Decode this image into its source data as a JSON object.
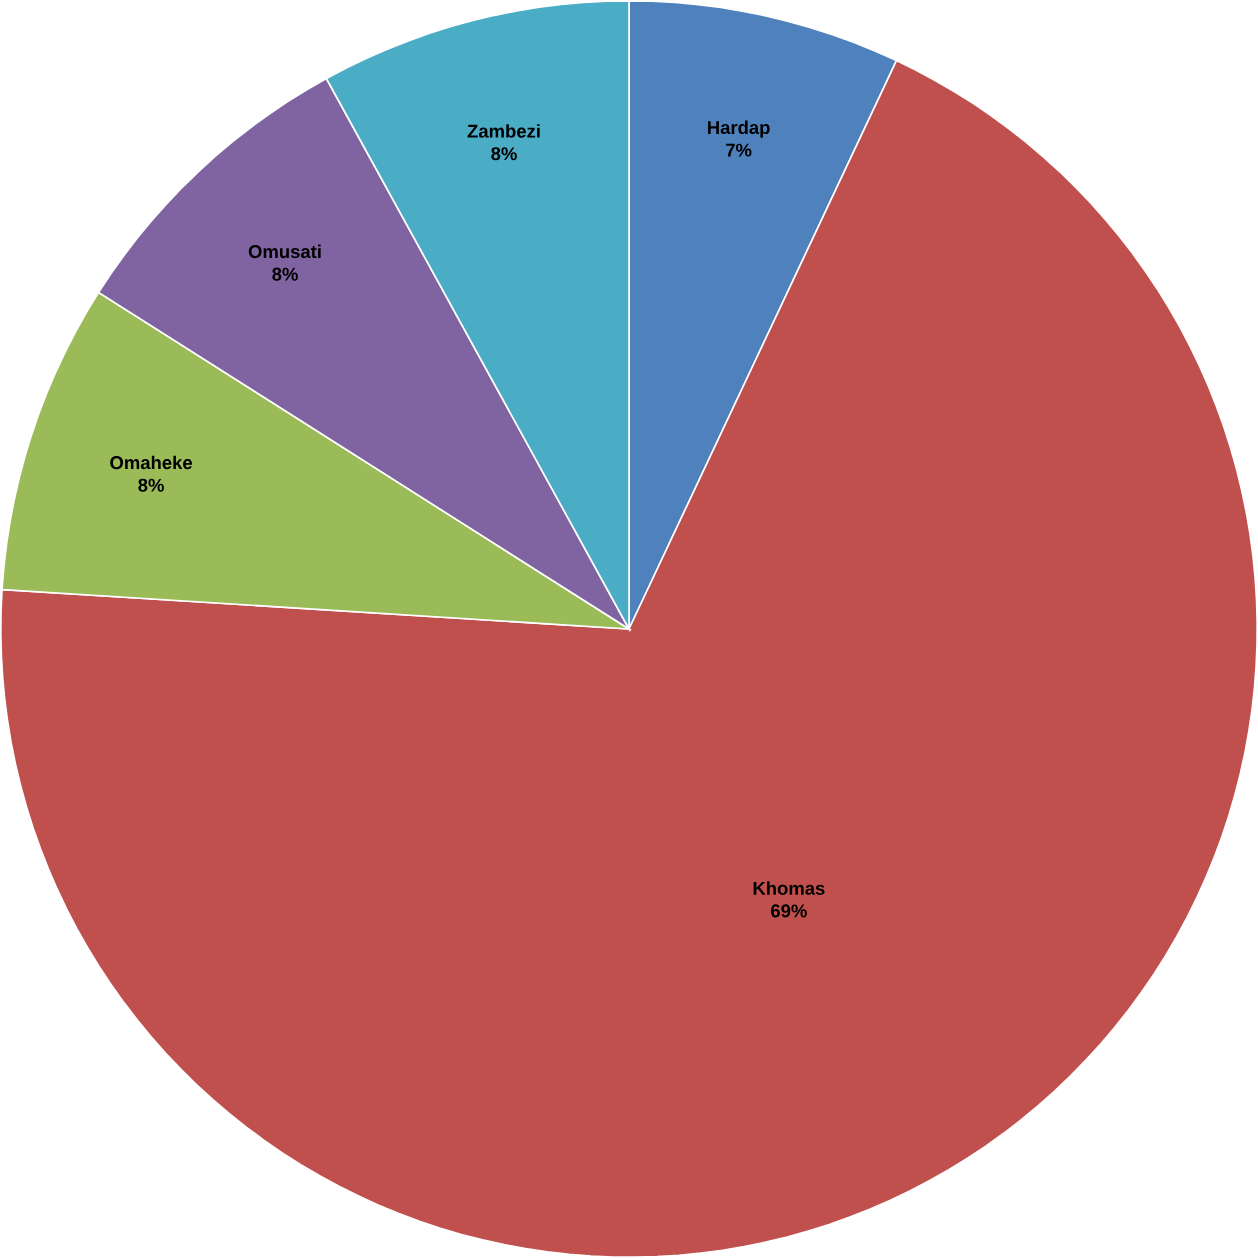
{
  "chart_data": {
    "type": "pie",
    "categories": [
      "Hardap",
      "Khomas",
      "Omaheke",
      "Omusati",
      "Zambezi"
    ],
    "values": [
      7,
      69,
      8,
      8,
      8
    ],
    "value_labels": [
      "7%",
      "69%",
      "8%",
      "8%",
      "8%"
    ],
    "colors": [
      "#4f81bd",
      "#c0504d",
      "#9bbb59",
      "#8064a2",
      "#4bacc6"
    ]
  }
}
